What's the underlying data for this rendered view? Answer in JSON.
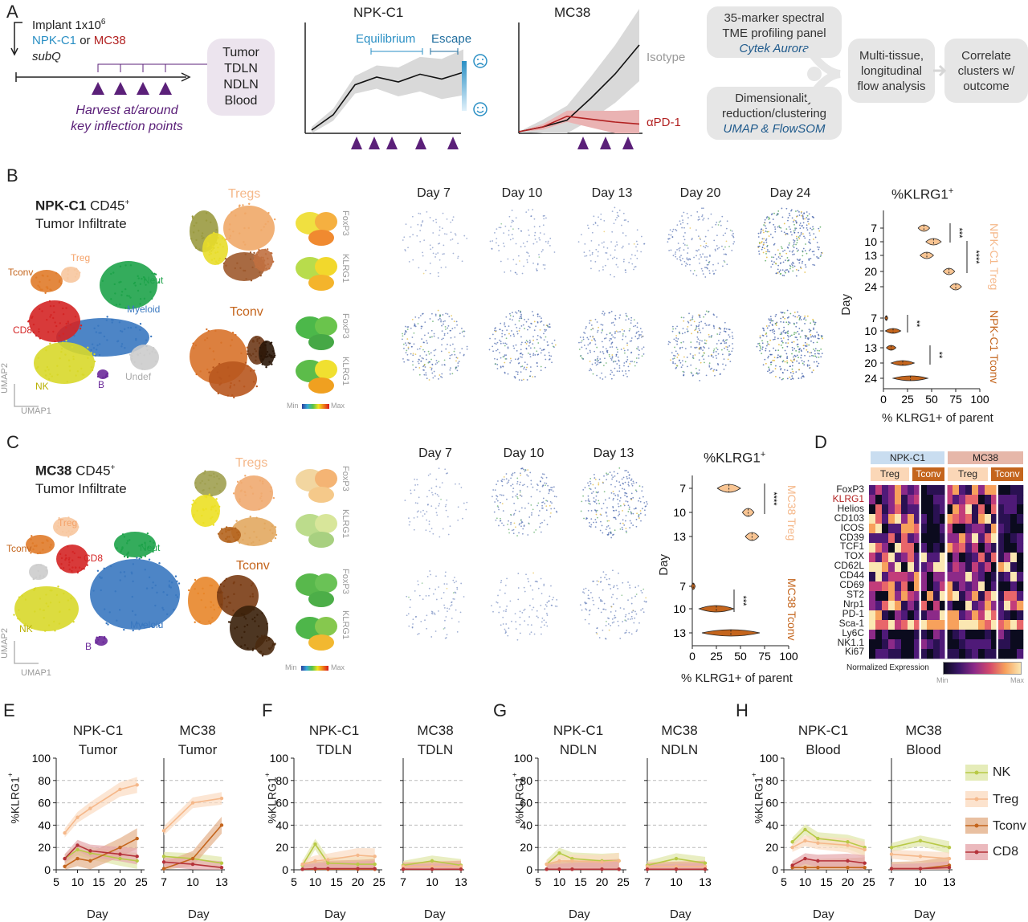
{
  "colors": {
    "npk_blue": "#2a8fc4",
    "mc38_red": "#b22222",
    "purple": "#5b2079",
    "treg": "#f5b88a",
    "tconv": "#c4651d",
    "nk_green": "#b8c946",
    "cd8_red": "#b5323a",
    "grey": "#bbbbbb"
  },
  "panelA": {
    "letter": "A",
    "implant_line1": "Implant 1x10",
    "implant_sup": "6",
    "npk": "NPK-C1",
    "or": "or",
    "mc38": "MC38",
    "subq": "subQ",
    "harvest_line1": "Harvest at/around",
    "harvest_line2": "key inflection points",
    "tissues": [
      "Tumor",
      "TDLN",
      "NDLN",
      "Blood"
    ],
    "npk_title": "NPK-C1",
    "equilibrium": "Equilibrium",
    "escape": "Escape",
    "mc38_title": "MC38",
    "isotype": "Isotype",
    "apd1": "αPD-1",
    "box1_line1": "35-marker spectral",
    "box1_line2": "TME profiling panel",
    "box1_line3": "Cytek Aurora",
    "box2_line1": "Dimensionality",
    "box2_line2": "reduction/clustering",
    "box2_line3": "UMAP & FlowSOM",
    "box3_line1": "Multi-tissue,",
    "box3_line2": "longitudinal",
    "box3_line3": "flow analysis",
    "box4_line1": "Correlate",
    "box4_line2": "clusters w/",
    "box4_line3": "outcome",
    "npk_curve": [
      [
        0,
        0
      ],
      [
        1,
        0.16
      ],
      [
        2,
        0.47
      ],
      [
        3,
        0.55
      ],
      [
        4,
        0.5
      ],
      [
        5,
        0.58
      ],
      [
        6,
        0.53
      ],
      [
        7,
        0.6
      ]
    ],
    "mc38_iso": [
      [
        0,
        0
      ],
      [
        1,
        0.05
      ],
      [
        2,
        0.12
      ],
      [
        3,
        0.35
      ],
      [
        4,
        0.6
      ],
      [
        5,
        0.9
      ]
    ],
    "mc38_pd1": [
      [
        0,
        0
      ],
      [
        1,
        0.05
      ],
      [
        2,
        0.16
      ],
      [
        3,
        0.13
      ],
      [
        4,
        0.1
      ],
      [
        5,
        0.08
      ]
    ]
  },
  "panelB": {
    "letter": "B",
    "title_bold": "NPK-C1",
    "title_rest": " CD45",
    "title_sup": "+",
    "title_line2": "Tumor Infiltrate",
    "clusters": [
      "Treg",
      "Tconv",
      "Neut",
      "Myeloid",
      "CD8",
      "NK",
      "B",
      "Undef"
    ],
    "umap1": "UMAP1",
    "umap2": "UMAP2",
    "tregs": "Tregs",
    "tconv": "Tconv",
    "foxp3": "FoxP3",
    "klrg1": "KLRG1",
    "min": "Min",
    "max": "Max",
    "days": [
      "Day 7",
      "Day 10",
      "Day 13",
      "Day 20",
      "Day 24"
    ],
    "violin_title": "%KLRG1",
    "violin_sup": "+",
    "violin_xlabel": "% KLRG1+ of parent",
    "violin_ylabel": "Day",
    "treg_label": "NPK-C1 Treg",
    "tconv_label": "NPK-C1 Tconv",
    "day_ticks": [
      "7",
      "10",
      "13",
      "20",
      "24"
    ],
    "x_ticks": [
      "0",
      "25",
      "50",
      "75",
      "100"
    ],
    "stars": [
      "***",
      "****",
      "**",
      "**"
    ],
    "treg_medians": [
      42,
      52,
      45,
      68,
      75
    ],
    "tconv_medians": [
      3,
      10,
      8,
      20,
      28
    ]
  },
  "panelC": {
    "letter": "C",
    "title_bold": "MC38",
    "title_rest": " CD45",
    "title_sup": "+",
    "title_line2": "Tumor Infiltrate",
    "clusters": [
      "Treg",
      "Tconv",
      "CD8",
      "Neut",
      "NK",
      "Myeloid",
      "B"
    ],
    "umap1": "UMAP1",
    "umap2": "UMAP2",
    "tregs": "Tregs",
    "tconv": "Tconv",
    "foxp3": "FoxP3",
    "klrg1": "KLRG1",
    "min": "Min",
    "max": "Max",
    "days": [
      "Day 7",
      "Day 10",
      "Day 13"
    ],
    "violin_title": "%KLRG1",
    "violin_sup": "+",
    "violin_xlabel": "% KLRG1+ of parent",
    "violin_ylabel": "Day",
    "treg_label": "MC38 Treg",
    "tconv_label": "MC38 Tconv",
    "day_ticks": [
      "7",
      "10",
      "13"
    ],
    "x_ticks": [
      "0",
      "25",
      "50",
      "75",
      "100"
    ],
    "stars": [
      "****",
      "***"
    ],
    "treg_medians": [
      38,
      58,
      62
    ],
    "tconv_medians": [
      1,
      25,
      40
    ]
  },
  "panelD": {
    "letter": "D",
    "group1": "NPK-C1",
    "group2": "MC38",
    "sub": [
      "Treg",
      "Tconv",
      "Treg",
      "Tconv"
    ],
    "markers": [
      "FoxP3",
      "KLRG1",
      "Helios",
      "CD103",
      "ICOS",
      "CD39",
      "TCF1",
      "TOX",
      "CD62L",
      "CD44",
      "CD69",
      "ST2",
      "Nrp1",
      "PD-1",
      "Sca-1",
      "Ly6C",
      "NK1.1",
      "Ki67"
    ],
    "legend": "Normalized Expression",
    "min": "Min",
    "max": "Max"
  },
  "lines": {
    "ylabel": "%KLRG1",
    "ysup": "+",
    "xlabel": "Day",
    "y_ticks": [
      "0",
      "20",
      "40",
      "60",
      "80",
      "100"
    ],
    "npk_x_ticks": [
      "5",
      "10",
      "15",
      "20",
      "25"
    ],
    "mc38_x_ticks": [
      "7",
      "10",
      "13"
    ],
    "panels": [
      {
        "letter": "E",
        "left_t1": "NPK-C1",
        "left_t2": "Tumor",
        "right_t1": "MC38",
        "right_t2": "Tumor"
      },
      {
        "letter": "F",
        "left_t1": "NPK-C1",
        "left_t2": "TDLN",
        "right_t1": "MC38",
        "right_t2": "TDLN"
      },
      {
        "letter": "G",
        "left_t1": "NPK-C1",
        "left_t2": "NDLN",
        "right_t1": "MC38",
        "right_t2": "NDLN"
      },
      {
        "letter": "H",
        "left_t1": "NPK-C1",
        "left_t2": "Blood",
        "right_t1": "MC38",
        "right_t2": "Blood"
      }
    ],
    "legend": [
      "NK",
      "Treg",
      "Tconv",
      "CD8"
    ]
  },
  "chart_data": [
    {
      "type": "line",
      "panel": "E",
      "title": "NPK-C1 Tumor",
      "xlabel": "Day",
      "ylabel": "%KLRG1+",
      "x": [
        7,
        10,
        13,
        20,
        24
      ],
      "ylim": [
        0,
        100
      ],
      "series": [
        {
          "name": "NK",
          "values": [
            10,
            18,
            15,
            10,
            8
          ]
        },
        {
          "name": "Treg",
          "values": [
            33,
            47,
            55,
            72,
            76
          ]
        },
        {
          "name": "Tconv",
          "values": [
            3,
            10,
            8,
            20,
            28
          ]
        },
        {
          "name": "CD8",
          "values": [
            10,
            22,
            17,
            14,
            12
          ]
        }
      ]
    },
    {
      "type": "line",
      "panel": "E",
      "title": "MC38 Tumor",
      "x": [
        7,
        10,
        13
      ],
      "ylim": [
        0,
        100
      ],
      "series": [
        {
          "name": "NK",
          "values": [
            12,
            10,
            6
          ]
        },
        {
          "name": "Treg",
          "values": [
            35,
            60,
            64
          ]
        },
        {
          "name": "Tconv",
          "values": [
            1,
            10,
            40
          ]
        },
        {
          "name": "CD8",
          "values": [
            7,
            5,
            2
          ]
        }
      ]
    },
    {
      "type": "line",
      "panel": "F",
      "title": "NPK-C1 TDLN",
      "x": [
        7,
        10,
        13,
        20,
        24
      ],
      "ylim": [
        0,
        100
      ],
      "series": [
        {
          "name": "NK",
          "values": [
            4,
            23,
            6,
            5,
            5
          ]
        },
        {
          "name": "Treg",
          "values": [
            5,
            8,
            9,
            13,
            12
          ]
        },
        {
          "name": "Tconv",
          "values": [
            0.5,
            0.5,
            0.5,
            0.5,
            0.5
          ]
        },
        {
          "name": "CD8",
          "values": [
            0.5,
            1,
            1,
            1,
            1
          ]
        }
      ]
    },
    {
      "type": "line",
      "panel": "F",
      "title": "MC38 TDLN",
      "x": [
        7,
        10,
        13
      ],
      "ylim": [
        0,
        100
      ],
      "series": [
        {
          "name": "NK",
          "values": [
            4,
            8,
            4
          ]
        },
        {
          "name": "Treg",
          "values": [
            3,
            3,
            3
          ]
        },
        {
          "name": "Tconv",
          "values": [
            0.5,
            0.5,
            0.5
          ]
        },
        {
          "name": "CD8",
          "values": [
            0.5,
            0.5,
            0.5
          ]
        }
      ]
    },
    {
      "type": "line",
      "panel": "G",
      "title": "NPK-C1 NDLN",
      "x": [
        7,
        10,
        13,
        20,
        24
      ],
      "ylim": [
        0,
        100
      ],
      "series": [
        {
          "name": "NK",
          "values": [
            5,
            15,
            10,
            8,
            8
          ]
        },
        {
          "name": "Treg",
          "values": [
            5,
            8,
            8,
            7,
            8
          ]
        },
        {
          "name": "Tconv",
          "values": [
            0.5,
            0.5,
            0.5,
            0.5,
            0.5
          ]
        },
        {
          "name": "CD8",
          "values": [
            0.5,
            0.5,
            0.5,
            0.5,
            0.5
          ]
        }
      ]
    },
    {
      "type": "line",
      "panel": "G",
      "title": "MC38 NDLN",
      "x": [
        7,
        10,
        13
      ],
      "ylim": [
        0,
        100
      ],
      "series": [
        {
          "name": "NK",
          "values": [
            4,
            10,
            6
          ]
        },
        {
          "name": "Treg",
          "values": [
            3,
            3,
            3
          ]
        },
        {
          "name": "Tconv",
          "values": [
            0.5,
            0.5,
            0.5
          ]
        },
        {
          "name": "CD8",
          "values": [
            0.5,
            0.5,
            0.5
          ]
        }
      ]
    },
    {
      "type": "line",
      "panel": "H",
      "title": "NPK-C1 Blood",
      "x": [
        7,
        10,
        13,
        20,
        24
      ],
      "ylim": [
        0,
        100
      ],
      "series": [
        {
          "name": "NK",
          "values": [
            25,
            36,
            28,
            25,
            20
          ]
        },
        {
          "name": "Treg",
          "values": [
            20,
            26,
            24,
            22,
            18
          ]
        },
        {
          "name": "Tconv",
          "values": [
            2,
            2,
            2,
            2,
            2
          ]
        },
        {
          "name": "CD8",
          "values": [
            4,
            10,
            8,
            8,
            6
          ]
        }
      ]
    },
    {
      "type": "line",
      "panel": "H",
      "title": "MC38 Blood",
      "x": [
        7,
        10,
        13
      ],
      "ylim": [
        0,
        100
      ],
      "series": [
        {
          "name": "NK",
          "values": [
            20,
            26,
            20
          ]
        },
        {
          "name": "Treg",
          "values": [
            14,
            12,
            10
          ]
        },
        {
          "name": "Tconv",
          "values": [
            1,
            1,
            4
          ]
        },
        {
          "name": "CD8",
          "values": [
            1,
            1,
            2
          ]
        }
      ]
    }
  ]
}
